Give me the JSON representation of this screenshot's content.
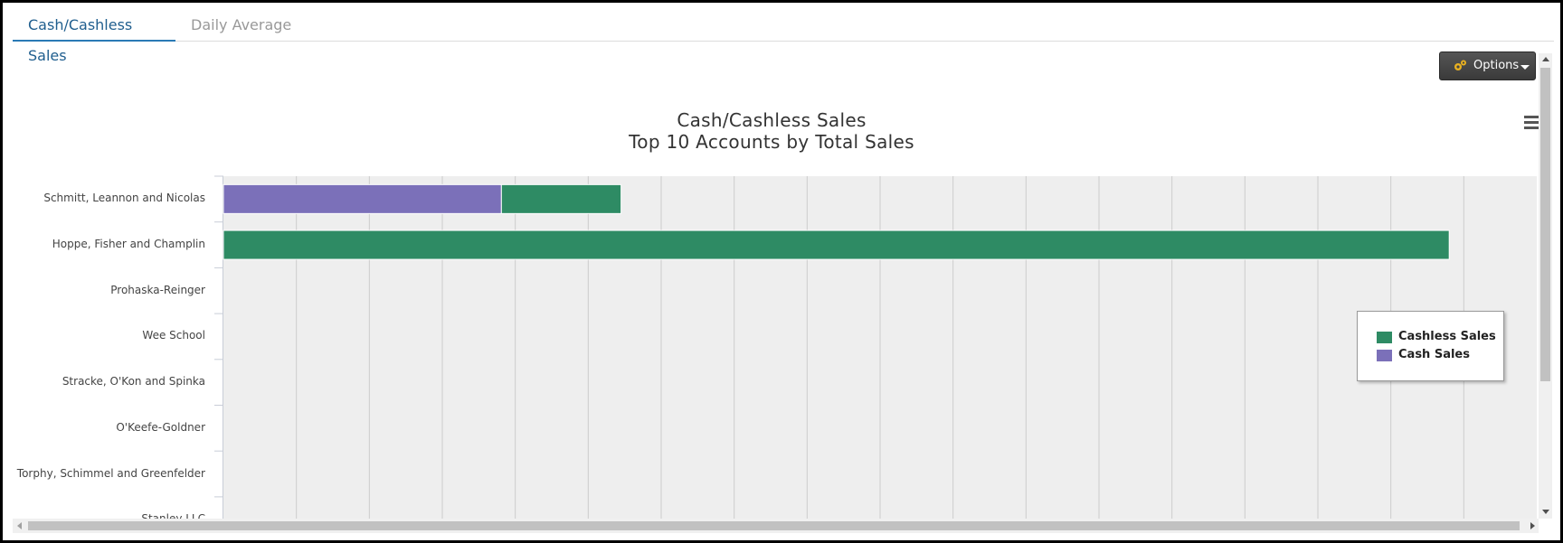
{
  "tabs": [
    {
      "label": "Cash/Cashless Sales",
      "active": true
    },
    {
      "label": "Daily Average",
      "active": false
    }
  ],
  "toolbar": {
    "options_label": "Options",
    "options_icon": "gears-icon",
    "menu_icon": "hamburger-menu-icon"
  },
  "chart_data": {
    "type": "bar",
    "orientation": "horizontal",
    "stacked": true,
    "title": "Cash/Cashless Sales",
    "subtitle": "Top 10 Accounts by Total Sales",
    "categories": [
      "Schmitt, Leannon and Nicolas",
      "Hoppe, Fisher and Champlin",
      "Prohaska-Reinger",
      "Wee School",
      "Stracke, O'Kon and Spinka",
      "O'Keefe-Goldner",
      "Torphy, Schimmel and Greenfelder",
      "Stanley LLC"
    ],
    "series": [
      {
        "name": "Cashless Sales",
        "color": "#2e8b64",
        "values": [
          1.64,
          16.8,
          0,
          0,
          0,
          0,
          0,
          0
        ]
      },
      {
        "name": "Cash Sales",
        "color": "#7b70b9",
        "values": [
          3.81,
          0,
          0,
          0,
          0,
          0,
          0,
          0
        ]
      }
    ],
    "xlim": [
      0,
      18
    ],
    "x_tick_count": 18,
    "grid": true,
    "legend_position": "right"
  },
  "colors": {
    "cashless": "#2e8b64",
    "cash": "#7b70b9",
    "plot_bg": "#eeeeee",
    "grid": "#cccccc"
  }
}
